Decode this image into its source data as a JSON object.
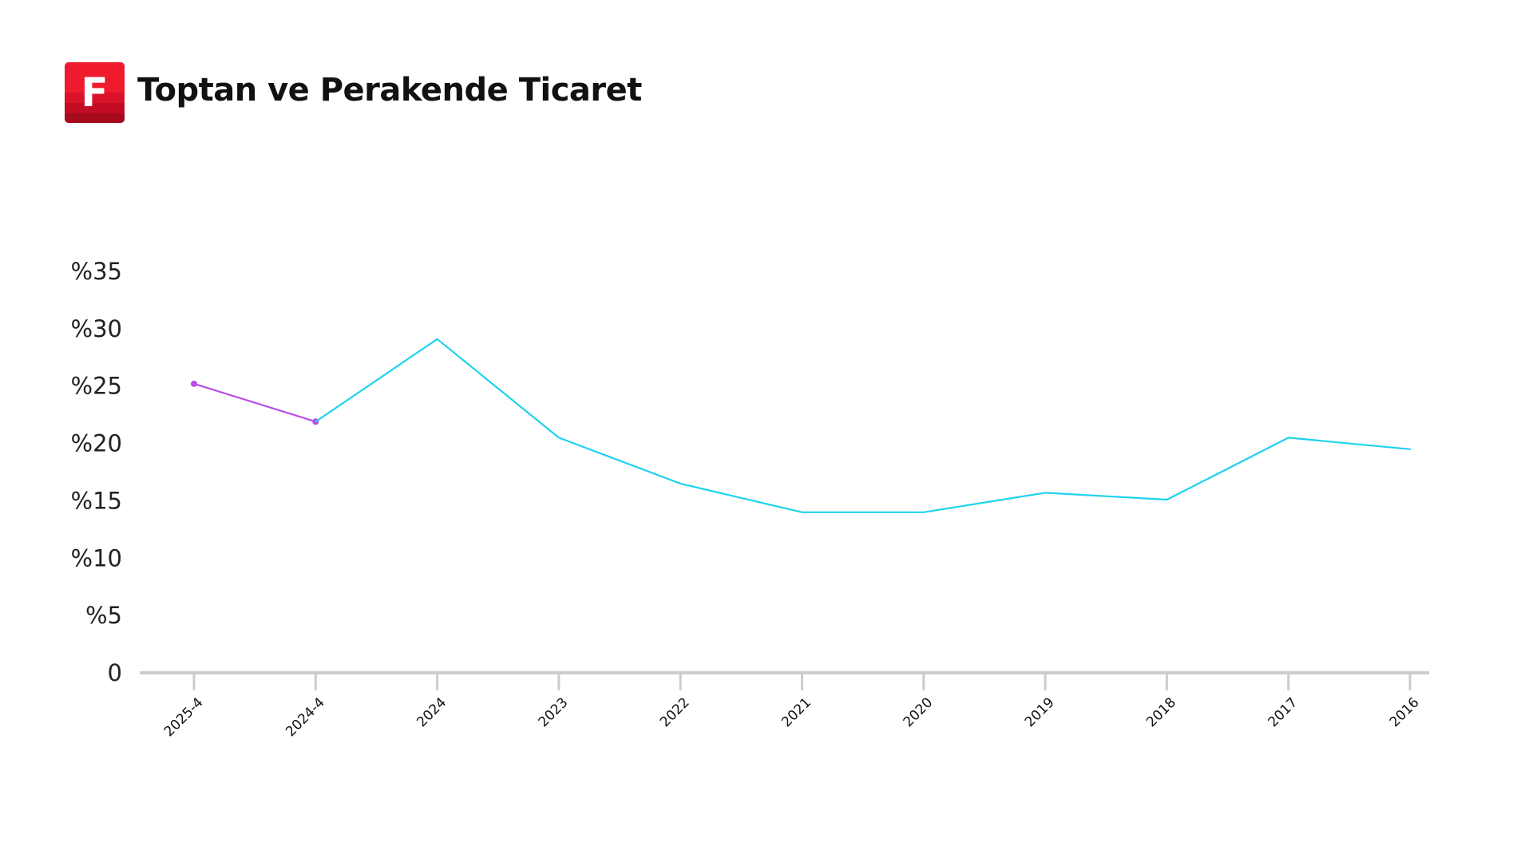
{
  "header": {
    "logo_letter": "F",
    "title": "Toptan ve Perakende Ticaret"
  },
  "chart_data": {
    "type": "line",
    "title": "Toptan ve Perakende Ticaret",
    "xlabel": "",
    "ylabel": "",
    "categories": [
      "2025-4",
      "2024-4",
      "2024",
      "2023",
      "2022",
      "2021",
      "2020",
      "2019",
      "2018",
      "2017",
      "2016"
    ],
    "y_tick_values": [
      0,
      5,
      10,
      15,
      20,
      25,
      30,
      35
    ],
    "y_tick_labels": [
      "0",
      "%5",
      "%10",
      "%15",
      "%20",
      "%25",
      "%30",
      "%35"
    ],
    "ylim": [
      0,
      35
    ],
    "grid": false,
    "legend": "none",
    "series": [
      {
        "key": "quarterly",
        "color": "#b84de8",
        "markers": true,
        "points": [
          {
            "x": "2025-4",
            "y": 25.2
          },
          {
            "x": "2024-4",
            "y": 21.9
          }
        ]
      },
      {
        "key": "annual",
        "color": "#1ed3ee",
        "markers": false,
        "points": [
          {
            "x": "2024-4",
            "y": 21.9
          },
          {
            "x": "2024",
            "y": 29.1
          },
          {
            "x": "2023",
            "y": 20.5
          },
          {
            "x": "2022",
            "y": 16.5
          },
          {
            "x": "2021",
            "y": 14.0
          },
          {
            "x": "2020",
            "y": 14.0
          },
          {
            "x": "2019",
            "y": 15.7
          },
          {
            "x": "2018",
            "y": 15.1
          },
          {
            "x": "2017",
            "y": 20.5
          },
          {
            "x": "2016",
            "y": 19.5
          }
        ]
      }
    ],
    "axis_color": "#cccccc"
  }
}
